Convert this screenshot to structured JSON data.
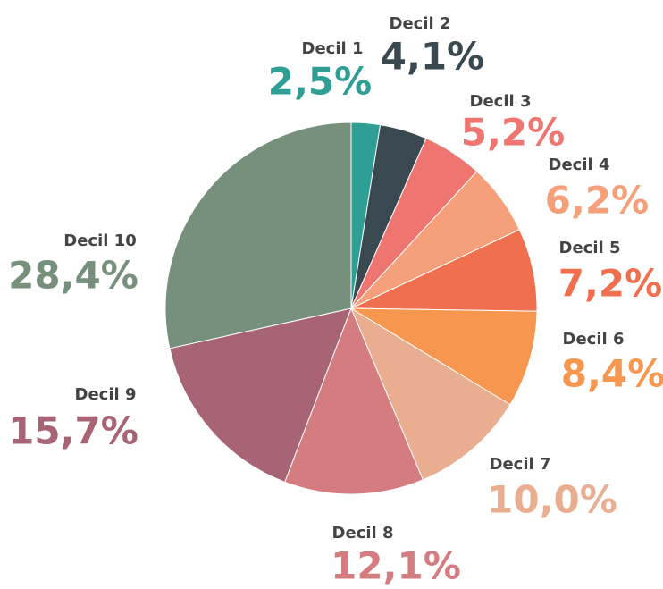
{
  "chart_data": {
    "type": "pie",
    "categories": [
      "Decil 1",
      "Decil 2",
      "Decil 3",
      "Decil 4",
      "Decil 5",
      "Decil 6",
      "Decil 7",
      "Decil 8",
      "Decil 9",
      "Decil 10"
    ],
    "values": [
      2.5,
      4.1,
      5.2,
      6.2,
      7.2,
      8.4,
      10.0,
      12.1,
      15.7,
      28.4
    ],
    "value_labels": [
      "2,5%",
      "4,1%",
      "5,2%",
      "6,2%",
      "7,2%",
      "8,4%",
      "10,0%",
      "12,1%",
      "15,7%",
      "28,4%"
    ],
    "colors": [
      "#2f9e94",
      "#3a4950",
      "#ef7571",
      "#f6a07b",
      "#f06f4f",
      "#f6964f",
      "#e9ad8f",
      "#d47c7f",
      "#a66474",
      "#76907b"
    ]
  }
}
